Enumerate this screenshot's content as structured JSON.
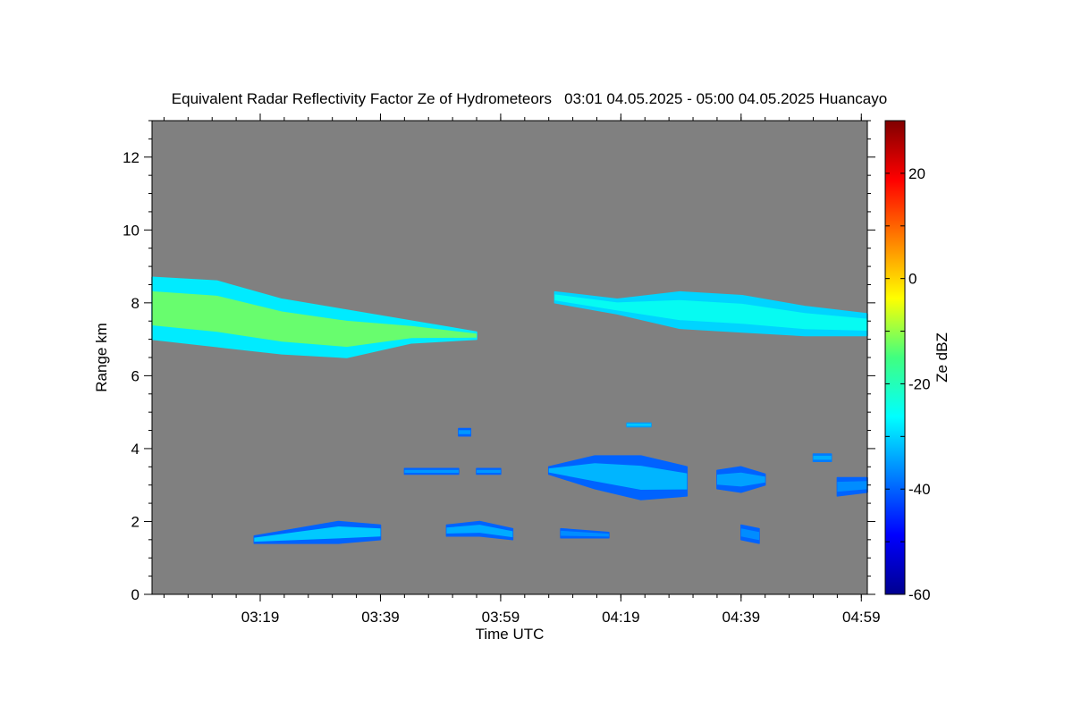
{
  "chart_data": {
    "type": "heatmap",
    "title": "Equivalent Radar Reflectivity Factor Ze of Hydrometeors   03:01 04.05.2025 - 05:00 04.05.2025 Huancayo",
    "xlabel": "Time UTC",
    "ylabel": "Range km",
    "x_unit": "minutes UTC",
    "xlim": [
      "03:01",
      "05:00"
    ],
    "x_ticks": [
      "03:19",
      "03:39",
      "03:59",
      "04:19",
      "04:39",
      "04:59"
    ],
    "ylim": [
      0,
      13
    ],
    "y_ticks": [
      "0",
      "2",
      "4",
      "6",
      "8",
      "10",
      "12"
    ],
    "background_color": "#808080",
    "colorbar": {
      "label": "Ze dBZ",
      "range": [
        -60,
        30
      ],
      "ticks": [
        "-60",
        "-40",
        "-20",
        "0",
        "20"
      ],
      "colormap": "jet"
    },
    "echoes": [
      {
        "t_start": "03:01",
        "t_end": "03:55",
        "top_km": [
          8.7,
          8.6,
          8.1,
          7.8,
          7.5,
          7.2
        ],
        "base_km": [
          7.0,
          6.8,
          6.6,
          6.5,
          6.9,
          7.0
        ],
        "ze_dbz": -12,
        "ze_edge_dbz": -28
      },
      {
        "t_start": "04:08",
        "t_end": "05:00",
        "top_km": [
          8.3,
          8.1,
          8.3,
          8.2,
          7.9,
          7.7
        ],
        "base_km": [
          8.0,
          7.7,
          7.3,
          7.2,
          7.1,
          7.1
        ],
        "ze_dbz": -25,
        "ze_edge_dbz": -30
      },
      {
        "t_start": "04:07",
        "t_end": "04:30",
        "top_km": [
          3.5,
          3.8,
          3.8,
          3.5
        ],
        "base_km": [
          3.3,
          2.9,
          2.6,
          2.7
        ],
        "ze_dbz": -32,
        "ze_edge_dbz": -40
      },
      {
        "t_start": "03:18",
        "t_end": "03:39",
        "top_km": [
          1.6,
          1.8,
          2.0,
          1.9
        ],
        "base_km": [
          1.4,
          1.4,
          1.4,
          1.5
        ],
        "ze_dbz": -30,
        "ze_edge_dbz": -40
      },
      {
        "t_start": "03:50",
        "t_end": "04:01",
        "top_km": [
          1.9,
          2.0,
          1.8
        ],
        "base_km": [
          1.6,
          1.6,
          1.5
        ],
        "ze_dbz": -33,
        "ze_edge_dbz": -40
      },
      {
        "t_start": "04:20",
        "t_end": "04:24",
        "top_km": [
          4.7,
          4.7
        ],
        "base_km": [
          4.6,
          4.6
        ],
        "ze_dbz": -30,
        "ze_edge_dbz": -35
      },
      {
        "t_start": "03:52",
        "t_end": "03:54",
        "top_km": [
          4.55,
          4.55
        ],
        "base_km": [
          4.35,
          4.35
        ],
        "ze_dbz": -35,
        "ze_edge_dbz": -40
      },
      {
        "t_start": "03:43",
        "t_end": "03:52",
        "top_km": [
          3.45,
          3.45
        ],
        "base_km": [
          3.3,
          3.3
        ],
        "ze_dbz": -35,
        "ze_edge_dbz": -40
      },
      {
        "t_start": "03:55",
        "t_end": "03:59",
        "top_km": [
          3.45,
          3.45
        ],
        "base_km": [
          3.3,
          3.3
        ],
        "ze_dbz": -35,
        "ze_edge_dbz": -40
      },
      {
        "t_start": "04:35",
        "t_end": "04:43",
        "top_km": [
          3.4,
          3.5,
          3.3
        ],
        "base_km": [
          2.9,
          2.8,
          3.0
        ],
        "ze_dbz": -34,
        "ze_edge_dbz": -40
      },
      {
        "t_start": "04:51",
        "t_end": "04:54",
        "top_km": [
          3.85,
          3.85
        ],
        "base_km": [
          3.65,
          3.65
        ],
        "ze_dbz": -33,
        "ze_edge_dbz": -38
      },
      {
        "t_start": "04:55",
        "t_end": "05:00",
        "top_km": [
          3.2,
          3.2
        ],
        "base_km": [
          2.7,
          2.8
        ],
        "ze_dbz": -36,
        "ze_edge_dbz": -40
      },
      {
        "t_start": "04:09",
        "t_end": "04:17",
        "top_km": [
          1.8,
          1.7
        ],
        "base_km": [
          1.55,
          1.55
        ],
        "ze_dbz": -36,
        "ze_edge_dbz": -40
      },
      {
        "t_start": "04:39",
        "t_end": "04:42",
        "top_km": [
          1.9,
          1.8
        ],
        "base_km": [
          1.5,
          1.4
        ],
        "ze_dbz": -36,
        "ze_edge_dbz": -40
      }
    ]
  }
}
